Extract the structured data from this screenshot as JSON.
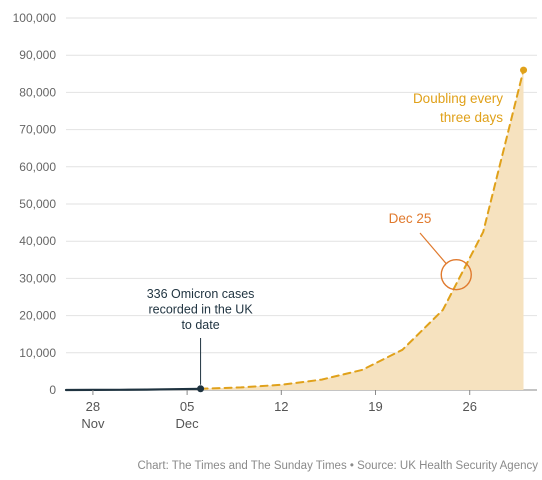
{
  "chart_data": {
    "type": "area",
    "ylim": [
      0,
      100000
    ],
    "y_ticks": [
      0,
      10000,
      20000,
      30000,
      40000,
      50000,
      60000,
      70000,
      80000,
      90000,
      100000
    ],
    "y_tick_labels": [
      "0",
      "10,000",
      "20,000",
      "30,000",
      "40,000",
      "50,000",
      "60,000",
      "70,000",
      "80,000",
      "90,000",
      "100,000"
    ],
    "xlim": [
      "2021-11-26",
      "2021-12-31"
    ],
    "x_ticks": [
      {
        "date": "2021-11-28",
        "line1": "28",
        "line2": "Nov"
      },
      {
        "date": "2021-12-05",
        "line1": "05",
        "line2": "Dec"
      },
      {
        "date": "2021-12-12",
        "line1": "12",
        "line2": ""
      },
      {
        "date": "2021-12-19",
        "line1": "19",
        "line2": ""
      },
      {
        "date": "2021-12-26",
        "line1": "26",
        "line2": ""
      }
    ],
    "grid": true,
    "series": [
      {
        "style": "solid",
        "color": "#1f3340",
        "points": [
          {
            "date": "2021-11-26",
            "value": 0
          },
          {
            "date": "2021-11-28",
            "value": 20
          },
          {
            "date": "2021-11-30",
            "value": 60
          },
          {
            "date": "2021-12-02",
            "value": 120
          },
          {
            "date": "2021-12-04",
            "value": 220
          },
          {
            "date": "2021-12-06",
            "value": 336
          }
        ]
      },
      {
        "style": "dashed",
        "color": "#e0a11a",
        "fill": "#f6e2bf",
        "points": [
          {
            "date": "2021-12-06",
            "value": 336
          },
          {
            "date": "2021-12-09",
            "value": 700
          },
          {
            "date": "2021-12-12",
            "value": 1400
          },
          {
            "date": "2021-12-15",
            "value": 2800
          },
          {
            "date": "2021-12-18",
            "value": 5400
          },
          {
            "date": "2021-12-21",
            "value": 10800
          },
          {
            "date": "2021-12-24",
            "value": 21500
          },
          {
            "date": "2021-12-27",
            "value": 42500
          },
          {
            "date": "2021-12-30",
            "value": 86000
          }
        ]
      }
    ],
    "annotations": {
      "current": {
        "lines": [
          "336 Omicron cases",
          "recorded in the UK",
          "to date"
        ],
        "date": "2021-12-06",
        "value": 336
      },
      "doubling": {
        "lines": [
          "Doubling every",
          "three days"
        ]
      },
      "dec25": {
        "label": "Dec 25",
        "date": "2021-12-25",
        "value": 31000
      }
    },
    "source": "Chart: The Times and The Sunday Times • Source: UK Health Security Agency"
  }
}
